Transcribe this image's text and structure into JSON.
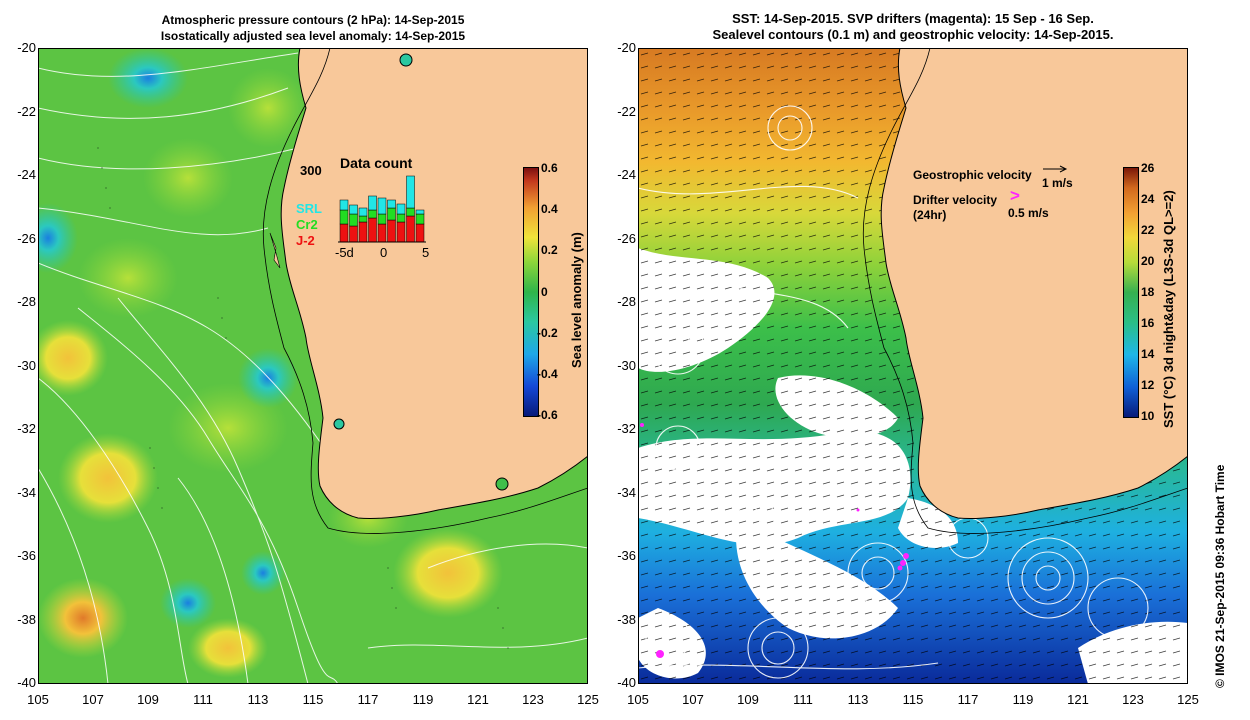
{
  "left_panel": {
    "title_line1": "Atmospheric pressure contours (2 hPa): 14-Sep-2015",
    "title_line2": "Isostatically adjusted sea level anomaly: 14-Sep-2015",
    "colorbar": {
      "label": "Sea level anomaly (m)",
      "ticks": [
        "0.6",
        "0.4",
        "0.2",
        "0",
        "-0.2",
        "-0.4",
        "-0.6"
      ]
    },
    "data_count": {
      "title": "Data count",
      "ymax_label": "300",
      "series": [
        {
          "name": "SRL",
          "color": "#22e6e6"
        },
        {
          "name": "Cr2",
          "color": "#22dd22"
        },
        {
          "name": "J-2",
          "color": "#ee1111"
        }
      ],
      "x_ticks": [
        "-5d",
        "0",
        "5"
      ]
    }
  },
  "right_panel": {
    "title_line1": "SST: 14-Sep-2015. SVP drifters (magenta): 15 Sep - 16 Sep.",
    "title_line2": "Sealevel contours (0.1 m) and geostrophic velocity: 14-Sep-2015.",
    "geostrophic_label": "Geostrophic velocity",
    "geostrophic_scale": "1 m/s",
    "drifter_label_line1": "Drifter velocity",
    "drifter_label_line2": "(24hr)",
    "drifter_scale": "0.5 m/s",
    "drifter_symbol": ">",
    "colorbar": {
      "label": "SST (°C) 3d night&day (L3S-3d QL>=2)",
      "ticks": [
        "26",
        "24",
        "22",
        "20",
        "18",
        "16",
        "14",
        "12",
        "10"
      ]
    }
  },
  "axes": {
    "y_ticks": [
      "-20",
      "-22",
      "-24",
      "-26",
      "-28",
      "-30",
      "-32",
      "-34",
      "-36",
      "-38",
      "-40"
    ],
    "x_ticks": [
      "105",
      "107",
      "109",
      "111",
      "113",
      "115",
      "117",
      "119",
      "121",
      "123",
      "125"
    ]
  },
  "credit": "© IMOS 21-Sep-2015 09:36 Hobart Time",
  "colors": {
    "land": "#f8c89a",
    "ocean_green": "#3fbf4a",
    "drifter": "#ff22ff"
  }
}
